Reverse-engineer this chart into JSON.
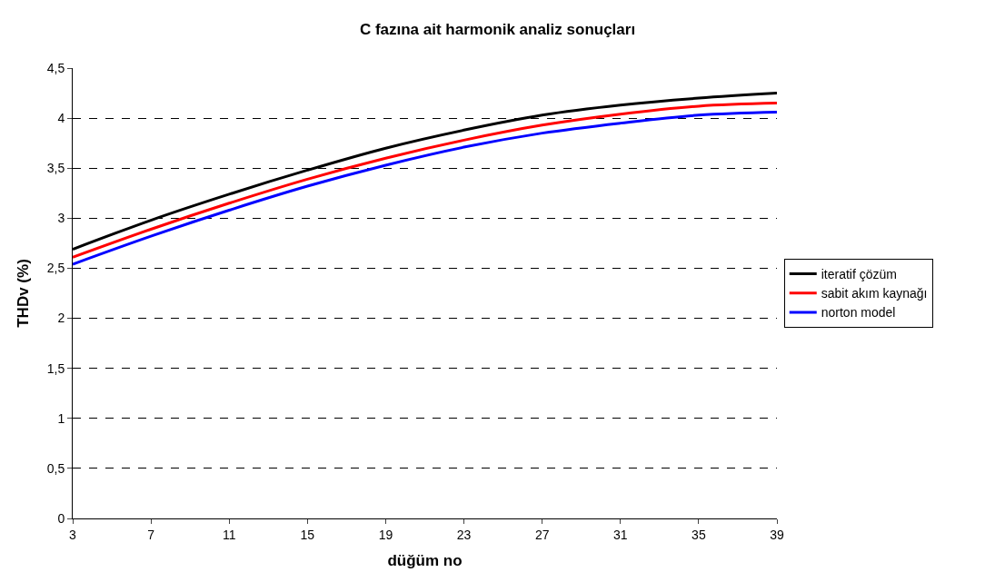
{
  "chart_data": {
    "type": "line",
    "title": "C fazına ait harmonik analiz sonuçları",
    "xlabel": "düğüm no",
    "ylabel": "THDv (%)",
    "x": [
      3,
      7,
      11,
      15,
      19,
      23,
      27,
      31,
      35,
      39
    ],
    "series": [
      {
        "name": "iteratif çözüm",
        "color": "#000000",
        "values": [
          2.69,
          2.98,
          3.24,
          3.48,
          3.7,
          3.88,
          4.03,
          4.13,
          4.2,
          4.25
        ]
      },
      {
        "name": "sabit akım kaynağı",
        "color": "#ff0000",
        "values": [
          2.61,
          2.89,
          3.15,
          3.39,
          3.6,
          3.78,
          3.93,
          4.04,
          4.12,
          4.15
        ]
      },
      {
        "name": "norton model",
        "color": "#0000ff",
        "values": [
          2.54,
          2.82,
          3.08,
          3.32,
          3.53,
          3.71,
          3.85,
          3.95,
          4.03,
          4.06
        ]
      }
    ],
    "xlim": [
      3,
      39
    ],
    "xticks": [
      3,
      7,
      11,
      15,
      19,
      23,
      27,
      31,
      35,
      39
    ],
    "ylim": [
      0,
      4.5
    ],
    "yticks": [
      0,
      {
        "value": 0.5,
        "label": "0,5"
      },
      1,
      {
        "value": 1.5,
        "label": "1,5"
      },
      2,
      {
        "value": 2.5,
        "label": "2,5"
      },
      3,
      {
        "value": 3.5,
        "label": "3,5"
      },
      4,
      {
        "value": 4.5,
        "label": "4,5"
      }
    ],
    "grid": "y",
    "legend": "right",
    "marker": "none",
    "line_style": "solid"
  }
}
